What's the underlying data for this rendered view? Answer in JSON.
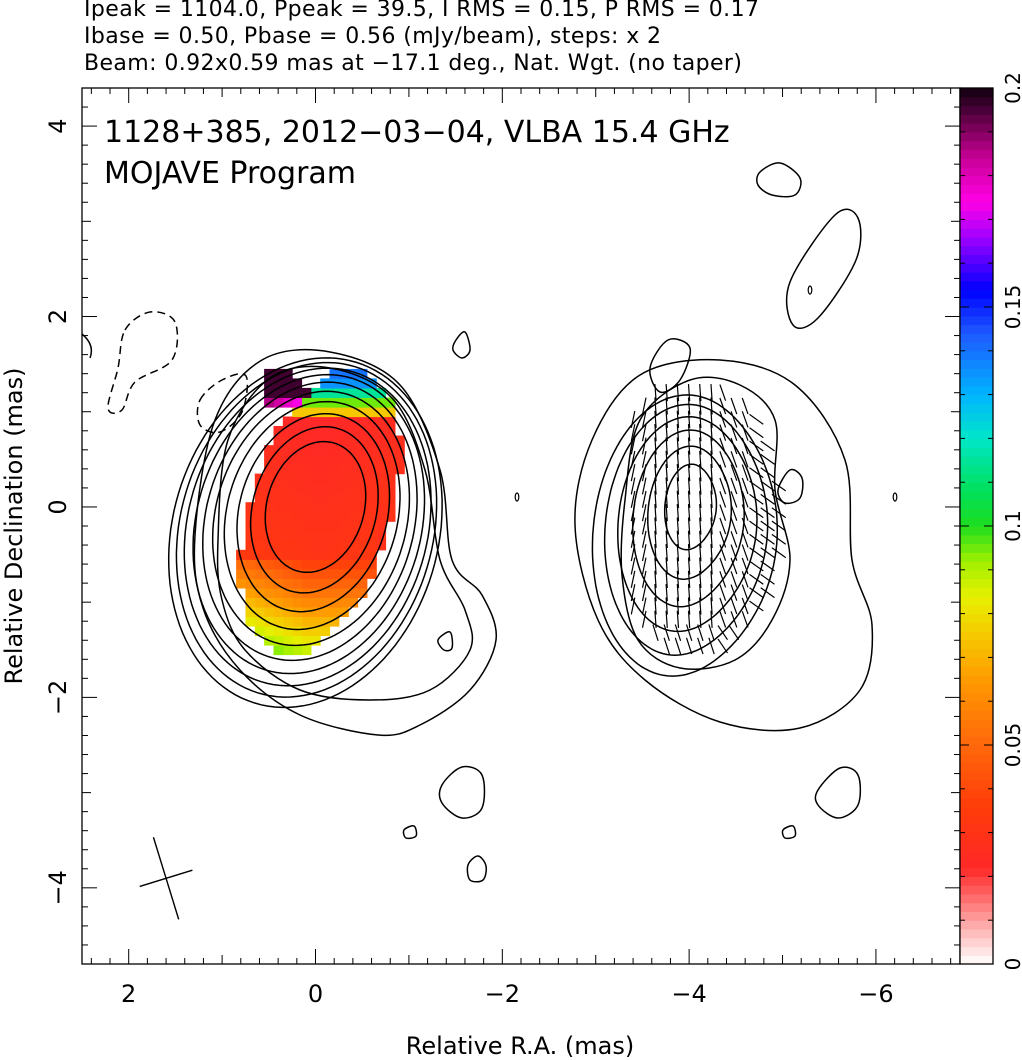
{
  "header": {
    "line1": "Ipeak = 1104.0, Ppeak = 39.5, I RMS = 0.15, P RMS = 0.17",
    "line2": "Ibase = 0.50, Pbase = 0.56 (mJy/beam), steps: x 2",
    "line3": "Beam: 0.92x0.59 mas at −17.1 deg., Nat. Wgt. (no taper)"
  },
  "chart_data": {
    "type": "heatmap",
    "title": "1128+385, 2012−03−04, VLBA 15.4 GHz",
    "subtitle": "MOJAVE Program",
    "xlabel": "Relative R.A. (mas)",
    "ylabel": "Relative Declination (mas)",
    "xlim": [
      2.5,
      -6.9
    ],
    "ylim": [
      -4.8,
      4.4
    ],
    "x_ticks": [
      2,
      0,
      -2,
      -4,
      -6
    ],
    "x_tick_labels": [
      "2",
      "0",
      "−2",
      "−4",
      "−6"
    ],
    "y_ticks": [
      4,
      2,
      0,
      -2,
      -4
    ],
    "y_tick_labels": [
      "4",
      "2",
      "0",
      "−2",
      "−4"
    ],
    "colorbar": {
      "min": 0,
      "max": 0.2,
      "ticks": [
        0,
        0.05,
        0.1,
        0.15,
        0.2
      ],
      "tick_labels": [
        "0",
        "0.05",
        "0.1",
        "0.15",
        "0.2"
      ]
    },
    "stokes_i_peak": [
      0,
      0
    ],
    "stokes_i_contour_axes_mas": [
      [
        0.52,
        0.7
      ],
      [
        0.66,
        0.89
      ],
      [
        0.79,
        1.06
      ],
      [
        0.91,
        1.22
      ],
      [
        1.02,
        1.36
      ],
      [
        1.11,
        1.49
      ],
      [
        1.2,
        1.6
      ],
      [
        1.28,
        1.7
      ],
      [
        1.35,
        1.79
      ],
      [
        1.42,
        1.87
      ]
    ],
    "stokes_i_contour_angle_deg": -17,
    "polarization_peak": [
      -4,
      0
    ],
    "polarization_contour_axes_mas": [
      [
        0.26,
        0.45
      ],
      [
        0.42,
        0.7
      ],
      [
        0.56,
        0.93
      ],
      [
        0.7,
        1.13
      ],
      [
        0.82,
        1.32
      ],
      [
        0.93,
        1.48
      ]
    ],
    "polarization_contour_angle_deg": -5,
    "beam": {
      "major_mas": 0.92,
      "minor_mas": 0.59,
      "pa_deg": -17.1,
      "center": [
        1.6,
        -3.9
      ]
    }
  }
}
